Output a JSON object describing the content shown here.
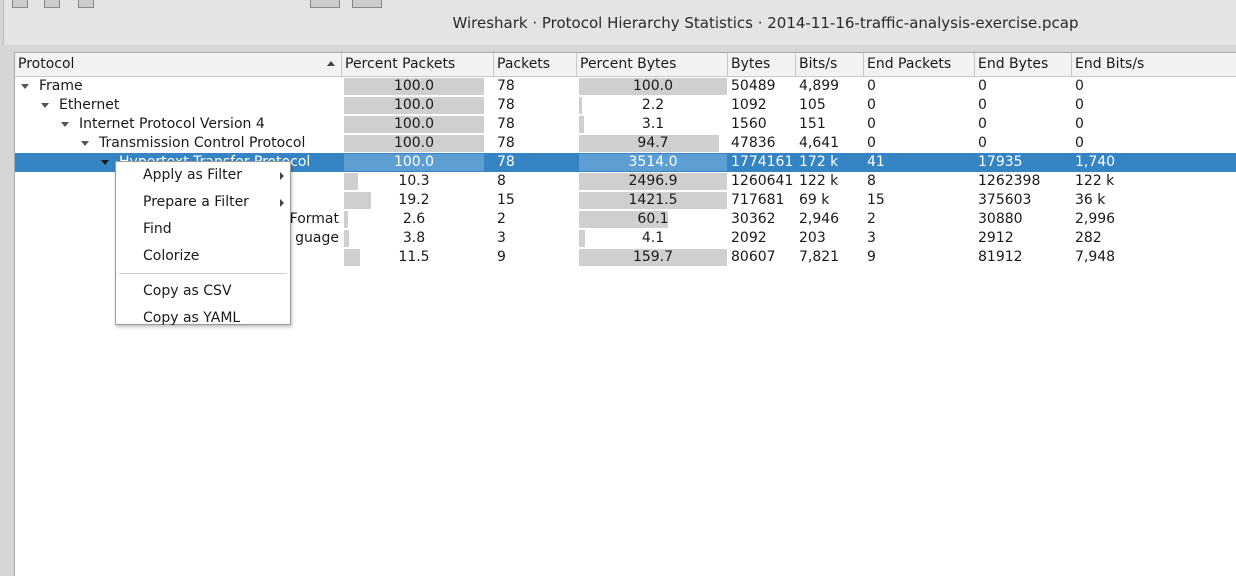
{
  "window": {
    "title": "Wireshark · Protocol Hierarchy Statistics · 2014-11-16-traffic-analysis-exercise.pcap"
  },
  "columns": [
    {
      "id": "protocol",
      "label": "Protocol"
    },
    {
      "id": "pct_packets",
      "label": "Percent Packets"
    },
    {
      "id": "packets",
      "label": "Packets"
    },
    {
      "id": "pct_bytes",
      "label": "Percent Bytes"
    },
    {
      "id": "bytes",
      "label": "Bytes"
    },
    {
      "id": "bits",
      "label": "Bits/s"
    },
    {
      "id": "end_packets",
      "label": "End Packets"
    },
    {
      "id": "end_bytes",
      "label": "End Bytes"
    },
    {
      "id": "end_bits",
      "label": "End Bits/s"
    }
  ],
  "rows": [
    {
      "protocol": "Frame",
      "depth": 0,
      "expanded": true,
      "pct_packets": "100.0",
      "pct_packets_fill": 1.0,
      "packets": "78",
      "pct_bytes": "100.0",
      "pct_bytes_fill": 1.0,
      "bytes": "50489",
      "bits": "4,899",
      "end_packets": "0",
      "end_bytes": "0",
      "end_bits": "0",
      "selected": false
    },
    {
      "protocol": "Ethernet",
      "depth": 1,
      "expanded": true,
      "pct_packets": "100.0",
      "pct_packets_fill": 1.0,
      "packets": "78",
      "pct_bytes": "2.2",
      "pct_bytes_fill": 0.022,
      "bytes": "1092",
      "bits": "105",
      "end_packets": "0",
      "end_bytes": "0",
      "end_bits": "0",
      "selected": false
    },
    {
      "protocol": "Internet Protocol Version 4",
      "depth": 2,
      "expanded": true,
      "pct_packets": "100.0",
      "pct_packets_fill": 1.0,
      "packets": "78",
      "pct_bytes": "3.1",
      "pct_bytes_fill": 0.031,
      "bytes": "1560",
      "bits": "151",
      "end_packets": "0",
      "end_bytes": "0",
      "end_bits": "0",
      "selected": false
    },
    {
      "protocol": "Transmission Control Protocol",
      "depth": 3,
      "expanded": true,
      "pct_packets": "100.0",
      "pct_packets_fill": 1.0,
      "packets": "78",
      "pct_bytes": "94.7",
      "pct_bytes_fill": 0.947,
      "bytes": "47836",
      "bits": "4,641",
      "end_packets": "0",
      "end_bytes": "0",
      "end_bits": "0",
      "selected": false
    },
    {
      "protocol": "Hypertext Transfer Protocol",
      "depth": 4,
      "expanded": true,
      "pct_packets": "100.0",
      "pct_packets_fill": 1.0,
      "packets": "78",
      "pct_bytes": "3514.0",
      "pct_bytes_fill": 1.0,
      "bytes": "1774161",
      "bits": "172 k",
      "end_packets": "41",
      "end_bytes": "17935",
      "end_bits": "1,740",
      "selected": true
    },
    {
      "protocol": "",
      "depth": 5,
      "expanded": false,
      "pct_packets": "10.3",
      "pct_packets_fill": 0.103,
      "packets": "8",
      "pct_bytes": "2496.9",
      "pct_bytes_fill": 1.0,
      "bytes": "1260641",
      "bits": "122 k",
      "end_packets": "8",
      "end_bytes": "1262398",
      "end_bits": "122 k",
      "selected": false
    },
    {
      "protocol": "",
      "depth": 5,
      "expanded": false,
      "pct_packets": "19.2",
      "pct_packets_fill": 0.192,
      "packets": "15",
      "pct_bytes": "1421.5",
      "pct_bytes_fill": 1.0,
      "bytes": "717681",
      "bits": "69 k",
      "end_packets": "15",
      "end_bytes": "375603",
      "end_bits": "36 k",
      "selected": false
    },
    {
      "protocol": "Format",
      "depth": 5,
      "expanded": false,
      "pct_packets": "2.6",
      "pct_packets_fill": 0.026,
      "packets": "2",
      "pct_bytes": "60.1",
      "pct_bytes_fill": 0.601,
      "bytes": "30362",
      "bits": "2,946",
      "end_packets": "2",
      "end_bytes": "30880",
      "end_bits": "2,996",
      "selected": false
    },
    {
      "protocol": "guage",
      "depth": 5,
      "expanded": false,
      "pct_packets": "3.8",
      "pct_packets_fill": 0.038,
      "packets": "3",
      "pct_bytes": "4.1",
      "pct_bytes_fill": 0.041,
      "bytes": "2092",
      "bits": "203",
      "end_packets": "3",
      "end_bytes": "2912",
      "end_bits": "282",
      "selected": false
    },
    {
      "protocol": "",
      "depth": 5,
      "expanded": false,
      "pct_packets": "11.5",
      "pct_packets_fill": 0.115,
      "packets": "9",
      "pct_bytes": "159.7",
      "pct_bytes_fill": 1.0,
      "bytes": "80607",
      "bits": "7,821",
      "end_packets": "9",
      "end_bytes": "81912",
      "end_bits": "7,948",
      "selected": false
    }
  ],
  "context_menu": {
    "items": [
      {
        "label": "Apply as Filter",
        "submenu": true
      },
      {
        "label": "Prepare a Filter",
        "submenu": true
      },
      {
        "label": "Find",
        "submenu": false
      },
      {
        "label": "Colorize",
        "submenu": false
      },
      {
        "separator": true
      },
      {
        "label": "Copy as CSV",
        "submenu": false
      },
      {
        "label": "Copy as YAML",
        "submenu": false
      }
    ]
  },
  "colors": {
    "selection": "#3584c4",
    "bar": "#cfcfcf",
    "bar_selected": "#5d9ed3"
  }
}
